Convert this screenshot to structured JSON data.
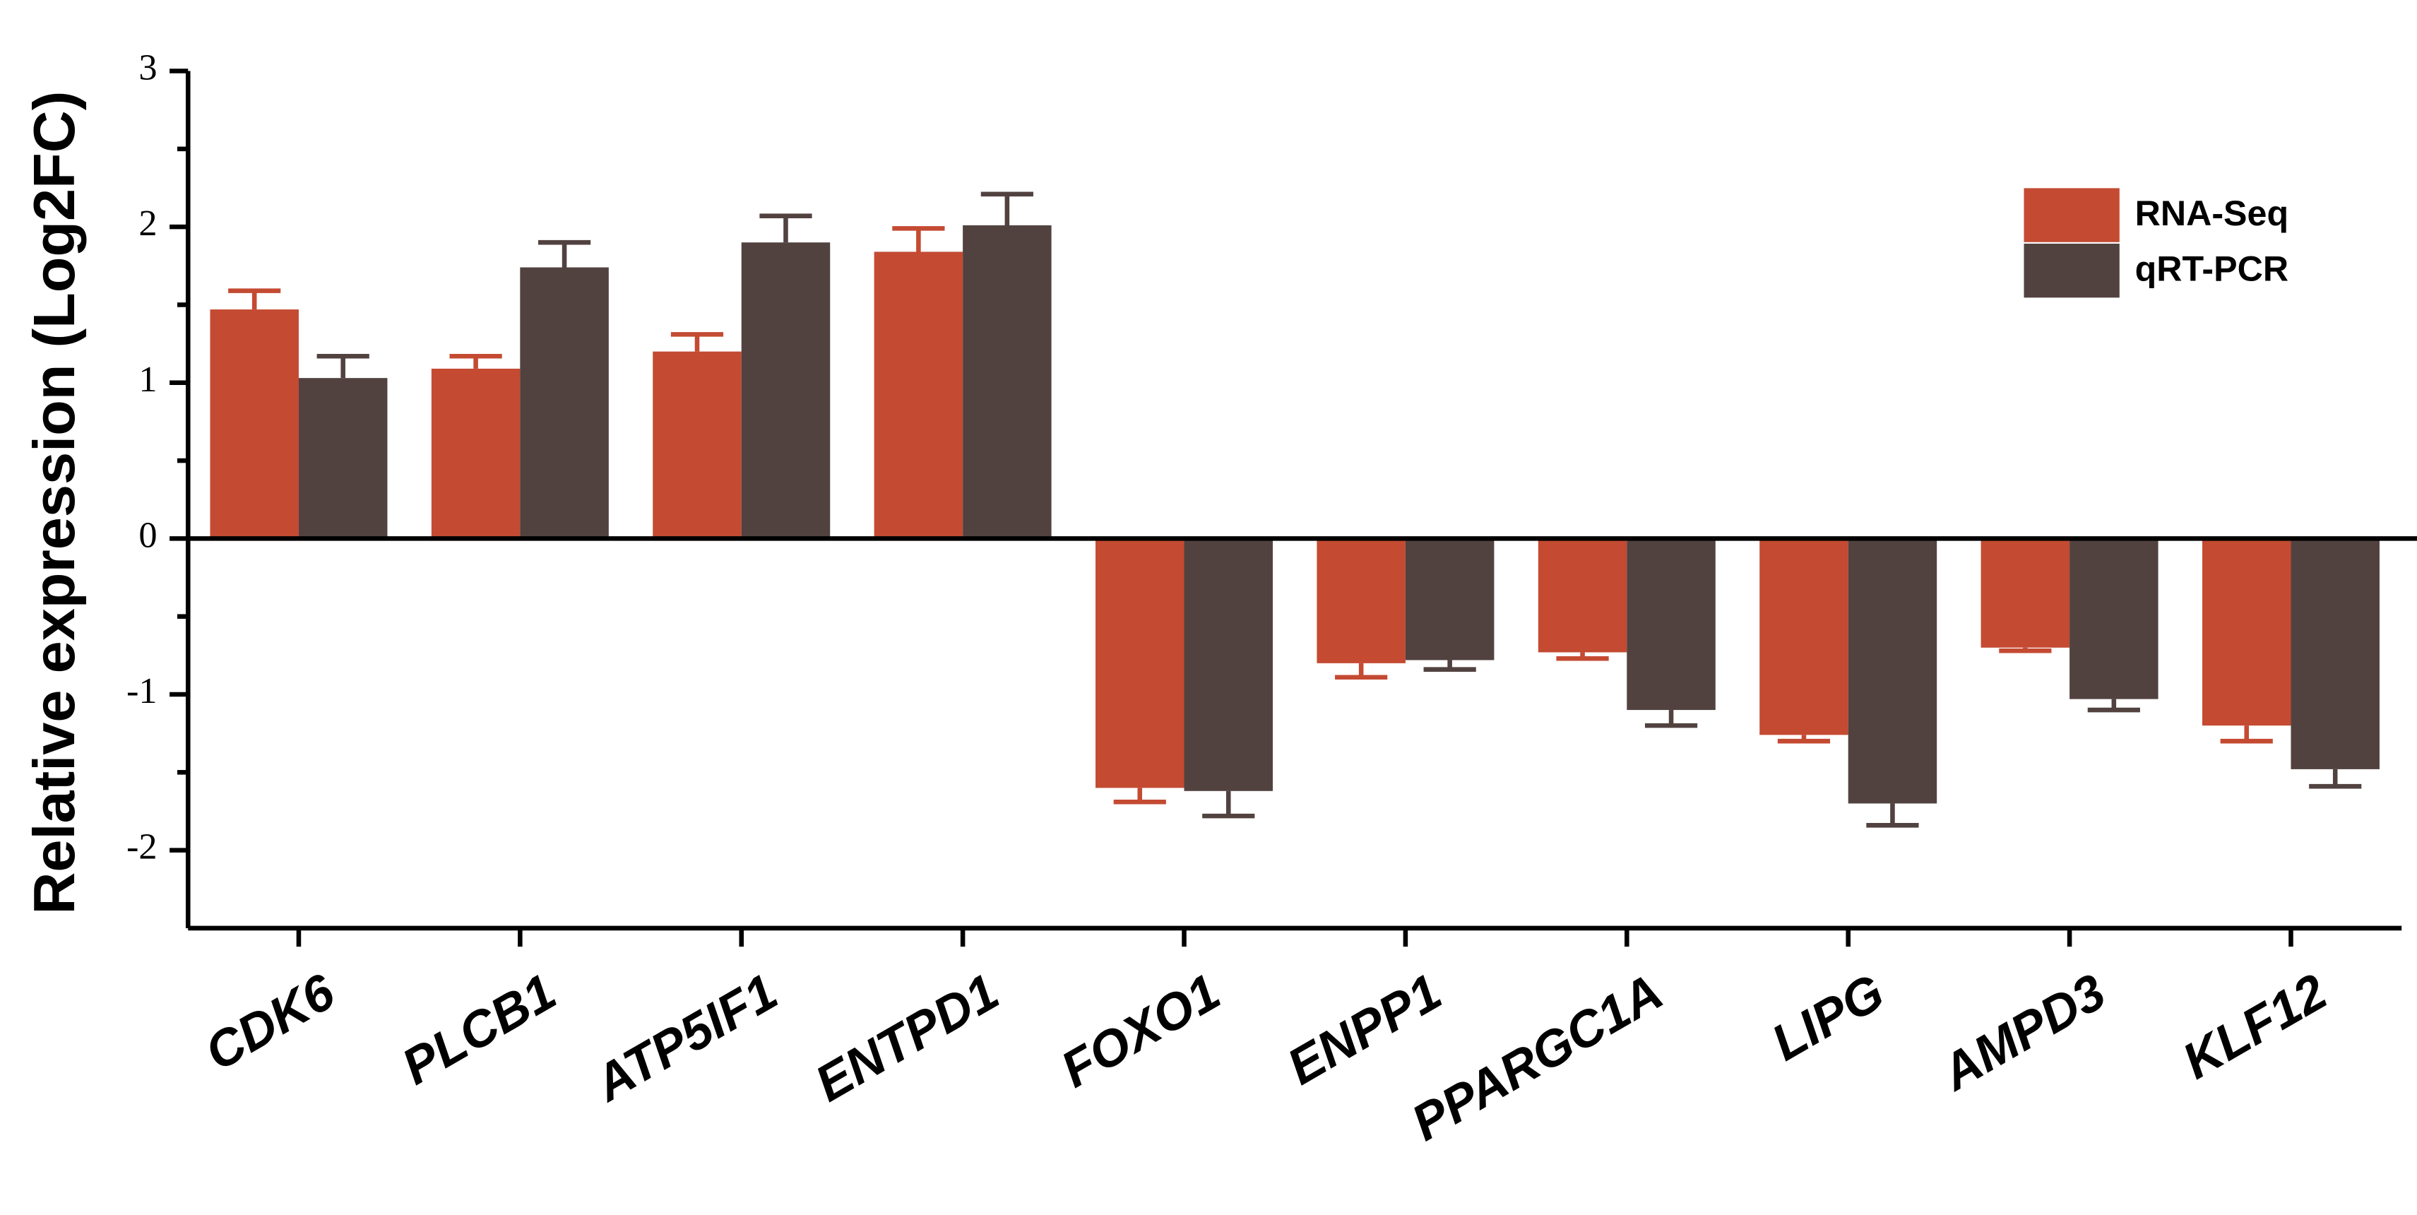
{
  "chart_data": {
    "type": "bar",
    "y_label": "Relative expression (Log2FC)",
    "categories": [
      "CDK6",
      "PLCB1",
      "ATP5IF1",
      "ENTPD1",
      "FOXO1",
      "ENPP1",
      "PPARGC1A",
      "LIPG",
      "AMPD3",
      "KLF12"
    ],
    "series": [
      {
        "name": "RNA-Seq",
        "color": "#c44a32",
        "values": [
          1.47,
          1.09,
          1.2,
          1.84,
          -1.6,
          -0.8,
          -0.73,
          -1.26,
          -0.7,
          -1.2
        ],
        "errors": [
          0.12,
          0.08,
          0.11,
          0.15,
          0.09,
          0.09,
          0.04,
          0.04,
          0.02,
          0.1
        ]
      },
      {
        "name": "qRT-PCR",
        "color": "#514240",
        "values": [
          1.03,
          1.74,
          1.9,
          2.01,
          -1.62,
          -0.78,
          -1.1,
          -1.7,
          -1.03,
          -1.48
        ],
        "errors": [
          0.14,
          0.16,
          0.17,
          0.2,
          0.16,
          0.06,
          0.1,
          0.14,
          0.07,
          0.11
        ]
      }
    ],
    "ylim": [
      -2.5,
      3
    ],
    "yticks": [
      -2,
      -1,
      0,
      1,
      2,
      3
    ],
    "grid": false,
    "legend": "upper right"
  }
}
